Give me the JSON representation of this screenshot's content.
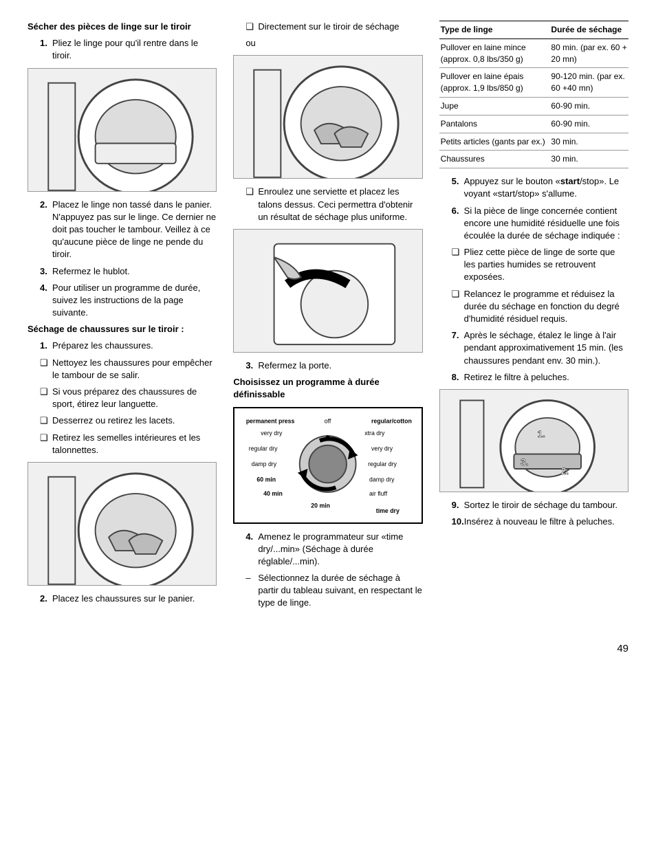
{
  "page_number": "49",
  "col1": {
    "h1": "Sécher des pièces de linge sur le tiroir",
    "s1_1": "Pliez le linge pour qu'il rentre dans le tiroir.",
    "s1_2": "Placez le linge non tassé dans le panier. N'appuyez pas sur le linge. Ce dernier ne doit pas toucher le tambour. Veillez à ce qu'aucune pièce de linge ne pende du tiroir.",
    "s1_3": "Refermez le hublot.",
    "s1_4": "Pour utiliser un programme de durée, suivez les instructions de la page suivante.",
    "h2": "Séchage de chaussures sur le tiroir :",
    "s2_1": "Préparez les chaussures.",
    "s2_1a": "Nettoyez les chaussures pour empêcher le tambour de se salir.",
    "s2_1b": "Si vous préparez des chaussures de sport, étirez leur languette.",
    "s2_1c": "Desserrez ou retirez les lacets.",
    "s2_1d": "Retirez les semelles intérieures et les talonnettes.",
    "s2_2": "Placez les chaussures sur le panier."
  },
  "col2": {
    "b1": "Directement sur le tiroir de séchage",
    "or": "ou",
    "b2": "Enroulez une serviette et placez les talons dessus. Ceci permettra d'obtenir un résultat de séchage plus uniforme.",
    "s3": "Refermez la porte.",
    "h3": "Choisissez un programme à durée définissable",
    "s4": "Amenez le programmateur sur «time dry/...min» (Séchage à durée réglable/...min).",
    "s4d": "Sélectionnez la durée de séchage à partir du tableau suivant, en respectant le type de linge.",
    "dial": {
      "tl": "permanent press",
      "tc": "off",
      "tr": "regular/cotton",
      "l1": "very dry",
      "r1": "xtra dry",
      "l2": "regular dry",
      "r2": "very dry",
      "l3": "damp dry",
      "r3": "regular dry",
      "l4": "60 min",
      "r4": "damp dry",
      "l5": "40 min",
      "r5": "air fluff",
      "bc": "20 min",
      "br": "time dry"
    }
  },
  "col3": {
    "table": {
      "h1": "Type de linge",
      "h2": "Durée de séchage",
      "rows": [
        [
          "Pullover en laine mince (approx. 0,8 lbs/350 g)",
          "80 min. (par ex. 60 + 20 mn)"
        ],
        [
          "Pullover en laine épais (approx. 1,9 lbs/850 g)",
          "90-120 min. (par ex. 60 +40 mn)"
        ],
        [
          "Jupe",
          "60-90 min."
        ],
        [
          "Pantalons",
          "60-90 min."
        ],
        [
          "Petits articles (gants par ex.)",
          "30 min."
        ],
        [
          "Chaussures",
          "30 min."
        ]
      ]
    },
    "s5a": "Appuyez sur le bouton «",
    "s5b": "start",
    "s5c": "/stop». Le voyant «start/stop» s'allume.",
    "s6": "Si la pièce de linge concernée contient encore une humidité résiduelle une fois écoulée la durée de séchage indiquée :",
    "s6a": "Pliez cette pièce de linge de sorte que les parties humides se retrouvent exposées.",
    "s6b": "Relancez le programme et réduisez la durée du séchage en fonction du degré d'humidité résiduel requis.",
    "s7": "Après le séchage, étalez le linge à l'air pendant approximativement 15 min. (les chaussures pendant env. 30 min.).",
    "s8": "Retirez le filtre à peluches.",
    "s9": "Sortez le tiroir de séchage du tambour.",
    "s10": "Insérez à nouveau le filtre à peluches."
  }
}
